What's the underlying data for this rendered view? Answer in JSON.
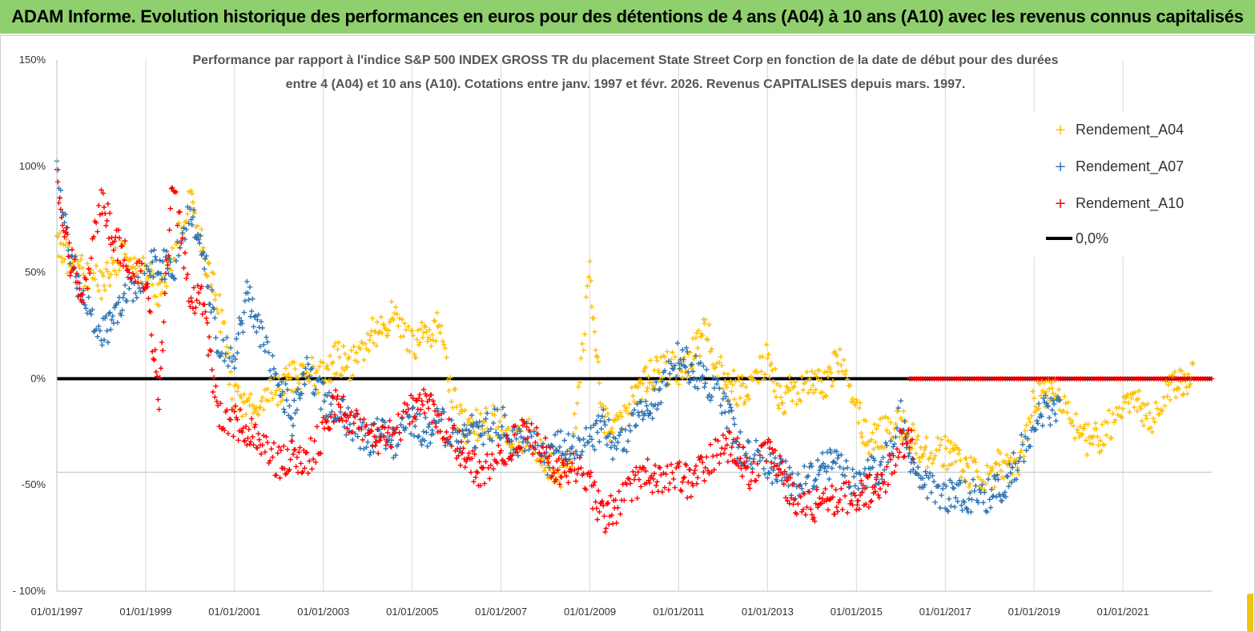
{
  "banner": {
    "title": "ADAM Informe. Evolution historique des performances en euros pour des détentions de 4 ans (A04) à 10 ans (A10) avec les revenus connus capitalisés"
  },
  "colors": {
    "banner_bg": "#8fcf6e",
    "a04": "#ffc000",
    "a07": "#2e75b6",
    "a10": "#ff0000",
    "zero_line": "#000000",
    "grid": "#d9d9d9"
  },
  "chart_data": {
    "type": "scatter",
    "title_lines": [
      "Performance par rapport à l'indice S&P 500 INDEX GROSS TR  du placement State Street Corp en fonction de la date de début pour des durées",
      "entre 4 (A04) et 10 ans (A10). Cotations entre janv. 1997 et févr. 2026. Revenus CAPITALISES depuis mars. 1997."
    ],
    "x_axis": {
      "min_year": 1997.0,
      "max_year": 2023.0,
      "tick_labels": [
        "01/01/1997",
        "01/01/1999",
        "01/01/2001",
        "01/01/2003",
        "01/01/2005",
        "01/01/2007",
        "01/01/2009",
        "01/01/2011",
        "01/01/2013",
        "01/01/2015",
        "01/01/2017",
        "01/01/2019",
        "01/01/2021"
      ],
      "tick_years": [
        1997,
        1999,
        2001,
        2003,
        2005,
        2007,
        2009,
        2011,
        2013,
        2015,
        2017,
        2019,
        2021
      ]
    },
    "y_axis": {
      "min": -100,
      "max": 150,
      "ticks": [
        150,
        100,
        50,
        0,
        -50,
        -100
      ],
      "tick_labels": [
        "150%",
        "100%",
        "50%",
        "0%",
        "-50%",
        "- 100%"
      ]
    },
    "series": [
      {
        "name": "Rendement_A04",
        "color": "#ffc000",
        "marker": "+",
        "x": [
          1997.0,
          1997.3,
          1997.6,
          1998.0,
          1998.3,
          1998.6,
          1999.0,
          1999.3,
          1999.6,
          2000.0,
          2000.3,
          2000.6,
          2001.0,
          2001.3,
          2001.6,
          2002.0,
          2002.3,
          2002.6,
          2003.0,
          2003.3,
          2003.6,
          2004.0,
          2004.3,
          2004.6,
          2005.0,
          2005.3,
          2005.6,
          2006.0,
          2006.3,
          2006.6,
          2007.0,
          2007.3,
          2007.6,
          2008.0,
          2008.3,
          2008.6,
          2009.0,
          2009.3,
          2009.6,
          2010.0,
          2010.3,
          2010.6,
          2011.0,
          2011.3,
          2011.6,
          2012.0,
          2012.3,
          2012.6,
          2013.0,
          2013.3,
          2013.6,
          2014.0,
          2014.3,
          2014.6,
          2015.0,
          2015.3,
          2015.6,
          2016.0,
          2016.3,
          2016.6,
          2017.0,
          2017.3,
          2017.6,
          2018.0,
          2018.3,
          2018.6,
          2019.0,
          2019.3,
          2019.6,
          2020.0,
          2020.3,
          2020.6,
          2021.0,
          2021.3,
          2021.6,
          2022.0,
          2022.3
        ],
        "y": [
          65,
          55,
          50,
          45,
          55,
          60,
          50,
          40,
          55,
          85,
          60,
          40,
          -10,
          -15,
          -10,
          -5,
          0,
          5,
          0,
          10,
          5,
          20,
          25,
          30,
          15,
          20,
          25,
          -15,
          -25,
          -20,
          -20,
          -30,
          -25,
          -40,
          -45,
          -35,
          50,
          -20,
          -25,
          -5,
          0,
          5,
          5,
          10,
          25,
          0,
          -5,
          -5,
          10,
          -10,
          -5,
          0,
          -5,
          10,
          -15,
          -30,
          -25,
          -20,
          -30,
          -35,
          -35,
          -40,
          -45,
          -45,
          -40,
          -45,
          -10,
          -5,
          -10,
          -25,
          -30,
          -25,
          -15,
          -10,
          -20,
          -5,
          0
        ]
      },
      {
        "name": "Rendement_A07",
        "color": "#2e75b6",
        "marker": "+",
        "x": [
          1997.0,
          1997.3,
          1997.6,
          1998.0,
          1998.3,
          1998.6,
          1999.0,
          1999.3,
          1999.6,
          2000.0,
          2000.3,
          2000.6,
          2001.0,
          2001.3,
          2001.6,
          2002.0,
          2002.3,
          2002.6,
          2003.0,
          2003.3,
          2003.6,
          2004.0,
          2004.3,
          2004.6,
          2005.0,
          2005.3,
          2005.6,
          2006.0,
          2006.3,
          2006.6,
          2007.0,
          2007.3,
          2007.6,
          2008.0,
          2008.3,
          2008.6,
          2009.0,
          2009.3,
          2009.6,
          2010.0,
          2010.3,
          2010.6,
          2011.0,
          2011.3,
          2011.6,
          2012.0,
          2012.3,
          2012.6,
          2013.0,
          2013.3,
          2013.6,
          2014.0,
          2014.3,
          2014.6,
          2015.0,
          2015.3,
          2015.6,
          2016.0,
          2016.3,
          2016.6,
          2017.0,
          2017.3,
          2017.6,
          2018.0,
          2018.3,
          2018.6,
          2019.0,
          2019.3
        ],
        "y": [
          95,
          60,
          35,
          20,
          30,
          40,
          50,
          55,
          50,
          80,
          60,
          20,
          10,
          40,
          20,
          0,
          -20,
          5,
          -10,
          -15,
          -20,
          -30,
          -25,
          -30,
          -20,
          -25,
          -20,
          -30,
          -25,
          -25,
          -20,
          -30,
          -25,
          -40,
          -30,
          -35,
          -30,
          -20,
          -35,
          -20,
          -15,
          -5,
          10,
          5,
          0,
          -10,
          -30,
          -35,
          -40,
          -45,
          -50,
          -45,
          -40,
          -40,
          -50,
          -45,
          -40,
          -15,
          -45,
          -50,
          -55,
          -55,
          -55,
          -55,
          -50,
          -40,
          -20,
          -15
        ]
      },
      {
        "name": "Rendement_A10",
        "color": "#ff0000",
        "marker": "+",
        "x": [
          1997.0,
          1997.3,
          1997.6,
          1998.0,
          1998.3,
          1998.6,
          1999.0,
          1999.3,
          1999.6,
          2000.0,
          2000.3,
          2000.6,
          2001.0,
          2001.3,
          2001.6,
          2002.0,
          2002.3,
          2002.6,
          2003.0,
          2003.3,
          2003.6,
          2004.0,
          2004.3,
          2004.6,
          2005.0,
          2005.3,
          2005.6,
          2006.0,
          2006.3,
          2006.6,
          2007.0,
          2007.3,
          2007.6,
          2008.0,
          2008.3,
          2008.6,
          2009.0,
          2009.3,
          2009.6,
          2010.0,
          2010.3,
          2010.6,
          2011.0,
          2011.3,
          2011.6,
          2012.0,
          2012.3,
          2012.6,
          2013.0,
          2013.3,
          2013.6,
          2014.0,
          2014.3,
          2014.6,
          2015.0,
          2015.3,
          2015.6,
          2016.0
        ],
        "y": [
          95,
          55,
          40,
          85,
          65,
          55,
          45,
          -10,
          95,
          40,
          35,
          -15,
          -20,
          -25,
          -30,
          -40,
          -35,
          -40,
          -25,
          -10,
          -20,
          -25,
          -30,
          -25,
          -15,
          -10,
          -20,
          -30,
          -40,
          -45,
          -35,
          -30,
          -25,
          -35,
          -45,
          -40,
          -50,
          -65,
          -60,
          -50,
          -45,
          -50,
          -45,
          -50,
          -40,
          -30,
          -35,
          -45,
          -35,
          -45,
          -55,
          -60,
          -58,
          -57,
          -55,
          -53,
          -50,
          -30
        ]
      }
    ],
    "zero_line": {
      "name": "0,0%",
      "y": 0,
      "color": "#000000"
    },
    "a10_flat_segment": {
      "x_start": 2016.2,
      "x_end": 2023.0,
      "y": 0
    },
    "legend": {
      "position": "top-right",
      "entries": [
        "Rendement_A04",
        "Rendement_A07",
        "Rendement_A10",
        "0,0%"
      ]
    },
    "grid": "vertical"
  }
}
